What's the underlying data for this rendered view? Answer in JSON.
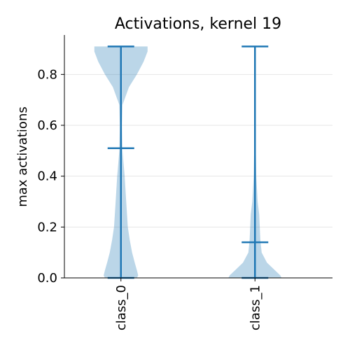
{
  "chart_data": {
    "type": "violin",
    "title": "Activations, kernel 19",
    "xlabel": "",
    "ylabel": "max activations",
    "ylim": [
      0,
      0.955
    ],
    "yticks": [
      0.0,
      0.2,
      0.4,
      0.6,
      0.8
    ],
    "ytick_labels": [
      "0.0",
      "0.2",
      "0.4",
      "0.6",
      "0.8"
    ],
    "grid": "horizontal",
    "categories": [
      "class_0",
      "class_1"
    ],
    "colors": {
      "body": "#1f77b4",
      "line": "#1f77b4"
    },
    "violins": [
      {
        "category": "class_0",
        "min": 0.0,
        "median": 0.51,
        "max": 0.91,
        "density": [
          [
            0.0,
            0.06
          ],
          [
            0.01,
            0.065
          ],
          [
            0.03,
            0.06
          ],
          [
            0.06,
            0.052
          ],
          [
            0.1,
            0.042
          ],
          [
            0.15,
            0.033
          ],
          [
            0.2,
            0.026
          ],
          [
            0.3,
            0.02
          ],
          [
            0.4,
            0.014
          ],
          [
            0.5,
            0.006
          ],
          [
            0.6,
            0.004
          ],
          [
            0.68,
            0.006
          ],
          [
            0.75,
            0.03
          ],
          [
            0.8,
            0.06
          ],
          [
            0.85,
            0.085
          ],
          [
            0.89,
            0.1
          ],
          [
            0.91,
            0.1
          ]
        ]
      },
      {
        "category": "class_1",
        "min": 0.0,
        "median": 0.14,
        "max": 0.91,
        "density": [
          [
            0.0,
            0.1
          ],
          [
            0.01,
            0.095
          ],
          [
            0.03,
            0.075
          ],
          [
            0.06,
            0.045
          ],
          [
            0.1,
            0.025
          ],
          [
            0.15,
            0.02
          ],
          [
            0.2,
            0.018
          ],
          [
            0.25,
            0.016
          ],
          [
            0.3,
            0.01
          ],
          [
            0.4,
            0.005
          ],
          [
            0.5,
            0.003
          ],
          [
            0.6,
            0.002
          ],
          [
            0.7,
            0.0015
          ],
          [
            0.8,
            0.001
          ],
          [
            0.91,
            0.001
          ]
        ]
      }
    ]
  }
}
